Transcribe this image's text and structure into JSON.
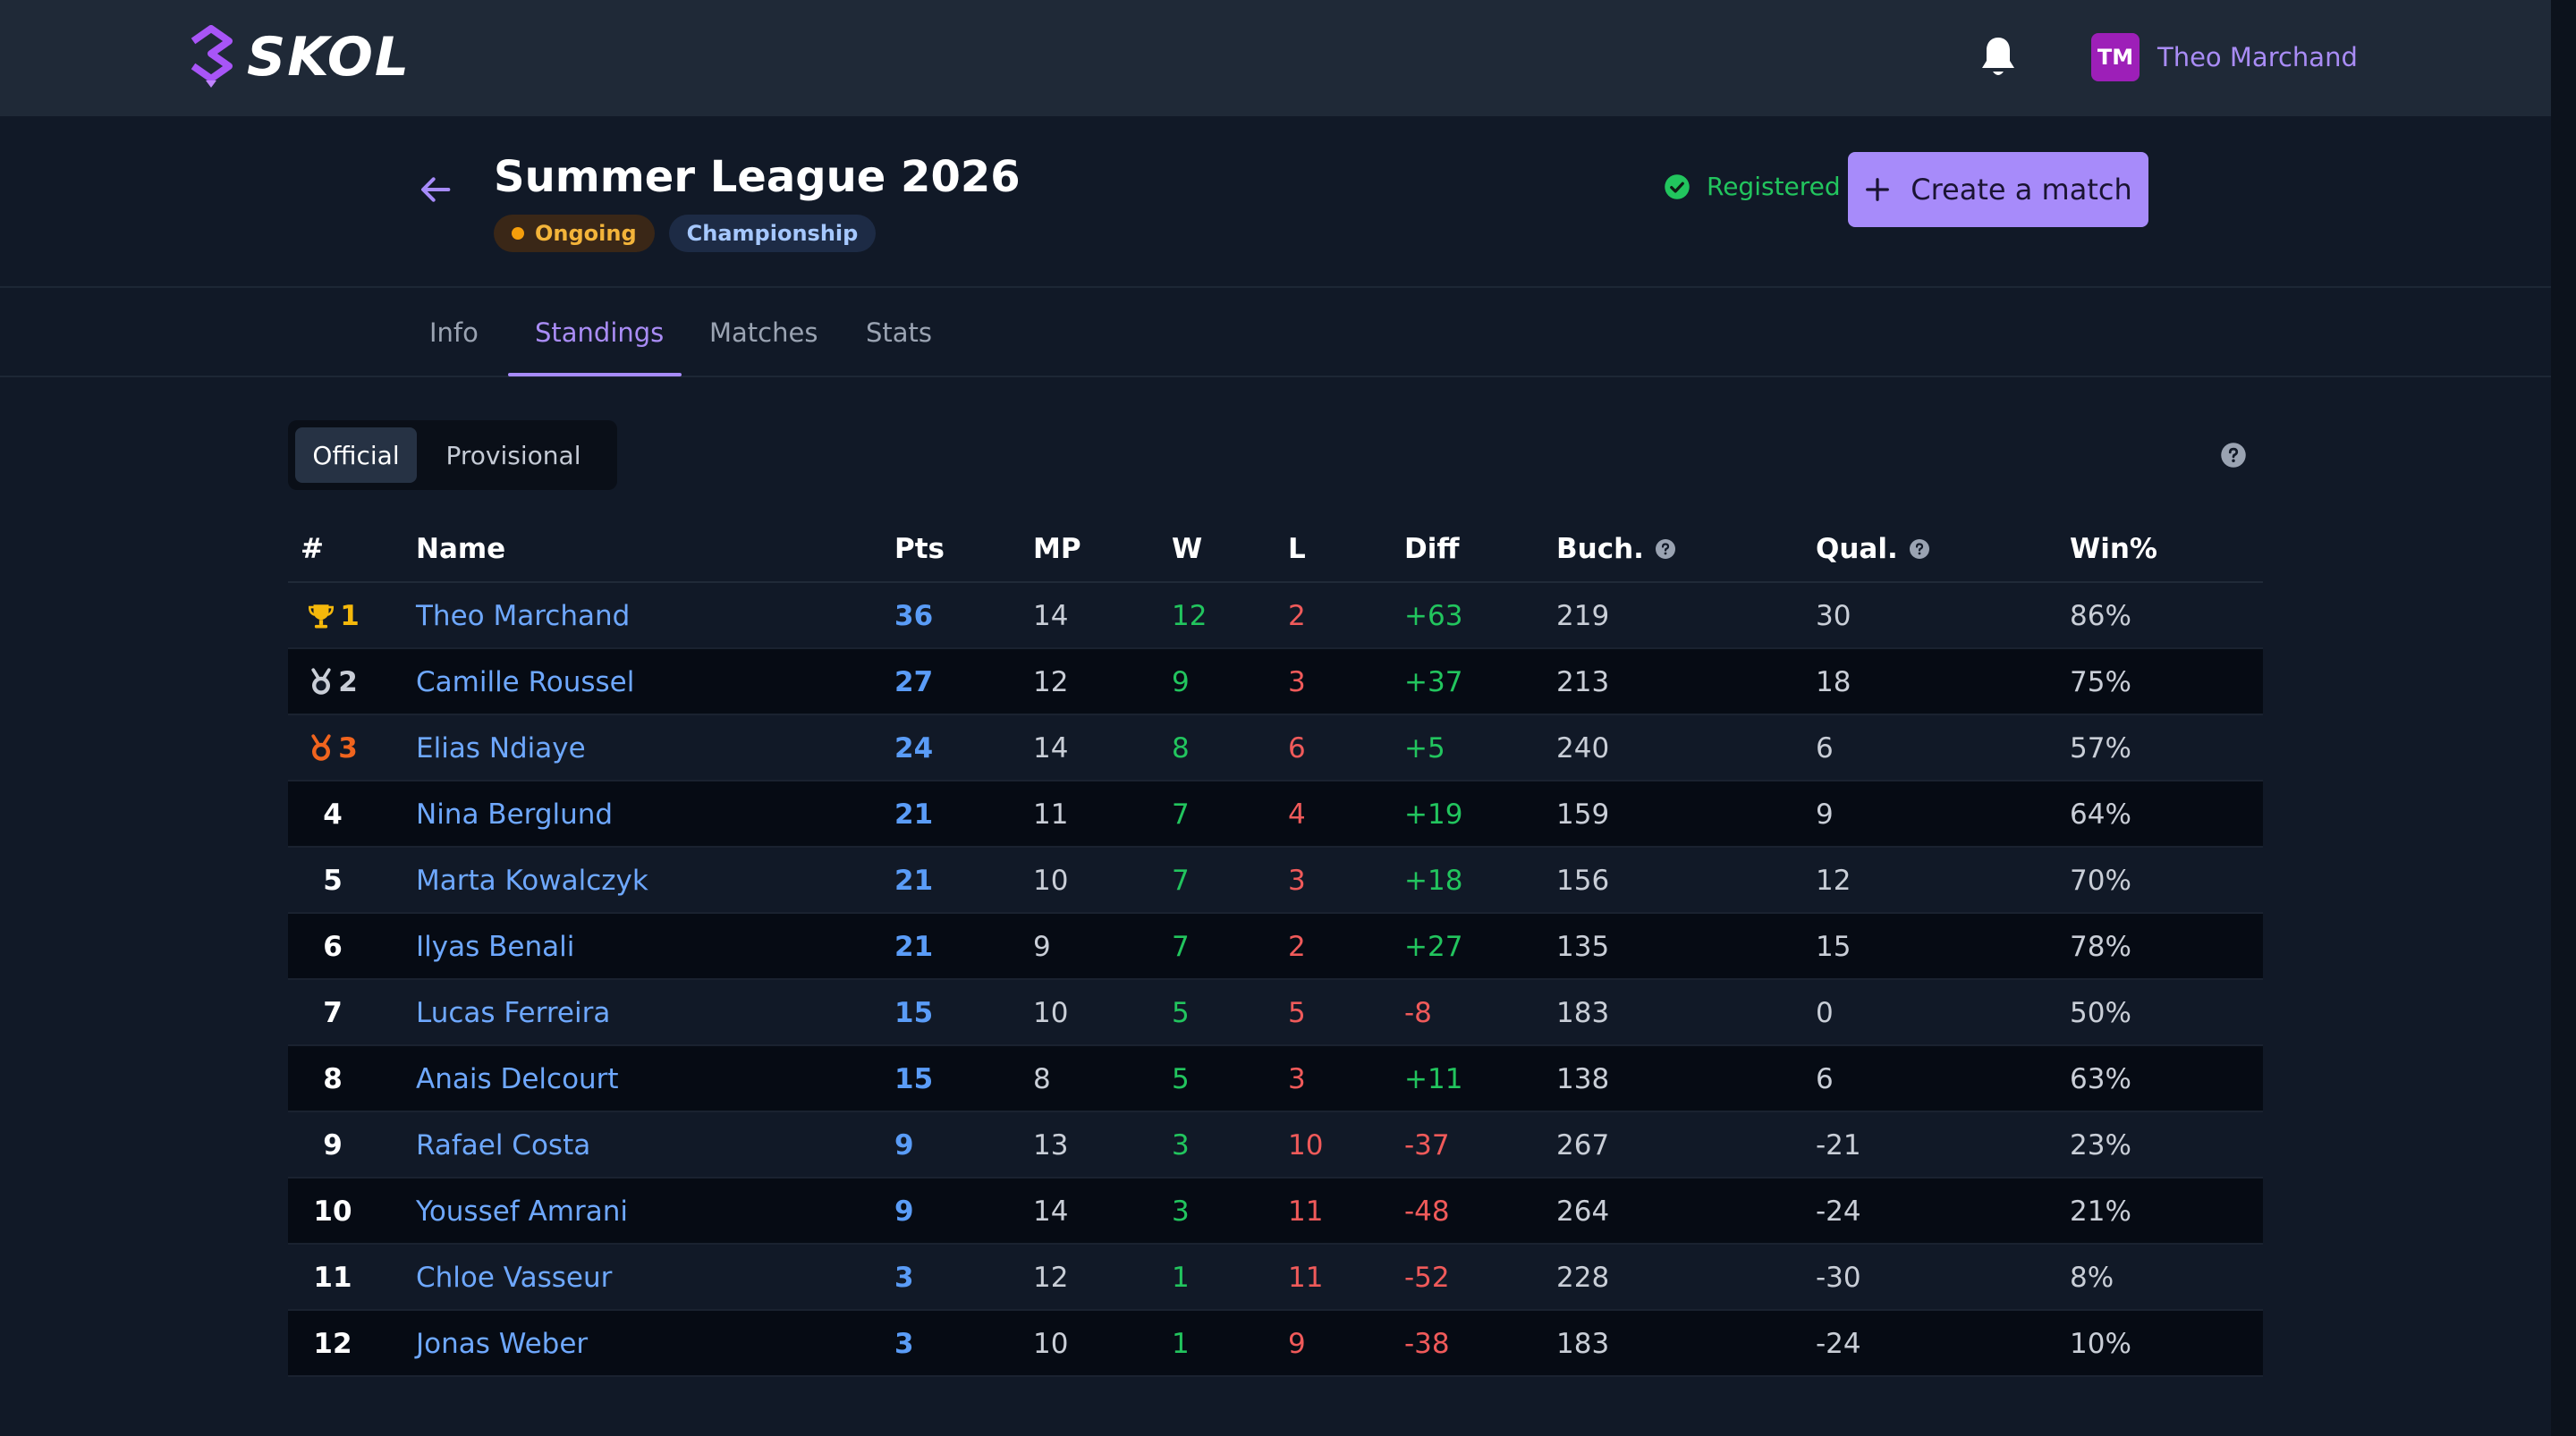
{
  "app": {
    "name": "SKOL"
  },
  "colors": {
    "accent": "#a78bfa",
    "positive": "#22c55e",
    "negative": "#f05a5a",
    "link": "#6ea8ff"
  },
  "user": {
    "initials": "TM",
    "name": "Theo Marchand"
  },
  "header": {
    "title": "Summer League 2026",
    "status_badge": "Ongoing",
    "type_badge": "Championship",
    "registered_label": "Registered",
    "create_button": "Create a match"
  },
  "tabs": [
    {
      "label": "Info",
      "active": false
    },
    {
      "label": "Standings",
      "active": true
    },
    {
      "label": "Matches",
      "active": false
    },
    {
      "label": "Stats",
      "active": false
    }
  ],
  "toggle": {
    "official": "Official",
    "provisional": "Provisional",
    "selected": "Official"
  },
  "table": {
    "headers": {
      "rank": "#",
      "name": "Name",
      "pts": "Pts",
      "mp": "MP",
      "w": "W",
      "l": "L",
      "diff": "Diff",
      "buch": "Buch.",
      "qual": "Qual.",
      "win": "Win%"
    },
    "rows": [
      {
        "rank": "1",
        "medal": "gold",
        "name": "Theo Marchand",
        "pts": "36",
        "mp": "14",
        "w": "12",
        "l": "2",
        "diff": "+63",
        "buch": "219",
        "qual": "30",
        "win": "86%"
      },
      {
        "rank": "2",
        "medal": "silver",
        "name": "Camille Roussel",
        "pts": "27",
        "mp": "12",
        "w": "9",
        "l": "3",
        "diff": "+37",
        "buch": "213",
        "qual": "18",
        "win": "75%"
      },
      {
        "rank": "3",
        "medal": "bronze",
        "name": "Elias Ndiaye",
        "pts": "24",
        "mp": "14",
        "w": "8",
        "l": "6",
        "diff": "+5",
        "buch": "240",
        "qual": "6",
        "win": "57%"
      },
      {
        "rank": "4",
        "medal": "",
        "name": "Nina Berglund",
        "pts": "21",
        "mp": "11",
        "w": "7",
        "l": "4",
        "diff": "+19",
        "buch": "159",
        "qual": "9",
        "win": "64%"
      },
      {
        "rank": "5",
        "medal": "",
        "name": "Marta Kowalczyk",
        "pts": "21",
        "mp": "10",
        "w": "7",
        "l": "3",
        "diff": "+18",
        "buch": "156",
        "qual": "12",
        "win": "70%"
      },
      {
        "rank": "6",
        "medal": "",
        "name": "Ilyas Benali",
        "pts": "21",
        "mp": "9",
        "w": "7",
        "l": "2",
        "diff": "+27",
        "buch": "135",
        "qual": "15",
        "win": "78%"
      },
      {
        "rank": "7",
        "medal": "",
        "name": "Lucas Ferreira",
        "pts": "15",
        "mp": "10",
        "w": "5",
        "l": "5",
        "diff": "-8",
        "buch": "183",
        "qual": "0",
        "win": "50%"
      },
      {
        "rank": "8",
        "medal": "",
        "name": "Anais Delcourt",
        "pts": "15",
        "mp": "8",
        "w": "5",
        "l": "3",
        "diff": "+11",
        "buch": "138",
        "qual": "6",
        "win": "63%"
      },
      {
        "rank": "9",
        "medal": "",
        "name": "Rafael Costa",
        "pts": "9",
        "mp": "13",
        "w": "3",
        "l": "10",
        "diff": "-37",
        "buch": "267",
        "qual": "-21",
        "win": "23%"
      },
      {
        "rank": "10",
        "medal": "",
        "name": "Youssef Amrani",
        "pts": "9",
        "mp": "14",
        "w": "3",
        "l": "11",
        "diff": "-48",
        "buch": "264",
        "qual": "-24",
        "win": "21%"
      },
      {
        "rank": "11",
        "medal": "",
        "name": "Chloe Vasseur",
        "pts": "3",
        "mp": "12",
        "w": "1",
        "l": "11",
        "diff": "-52",
        "buch": "228",
        "qual": "-30",
        "win": "8%"
      },
      {
        "rank": "12",
        "medal": "",
        "name": "Jonas Weber",
        "pts": "3",
        "mp": "10",
        "w": "1",
        "l": "9",
        "diff": "-38",
        "buch": "183",
        "qual": "-24",
        "win": "10%"
      }
    ]
  }
}
